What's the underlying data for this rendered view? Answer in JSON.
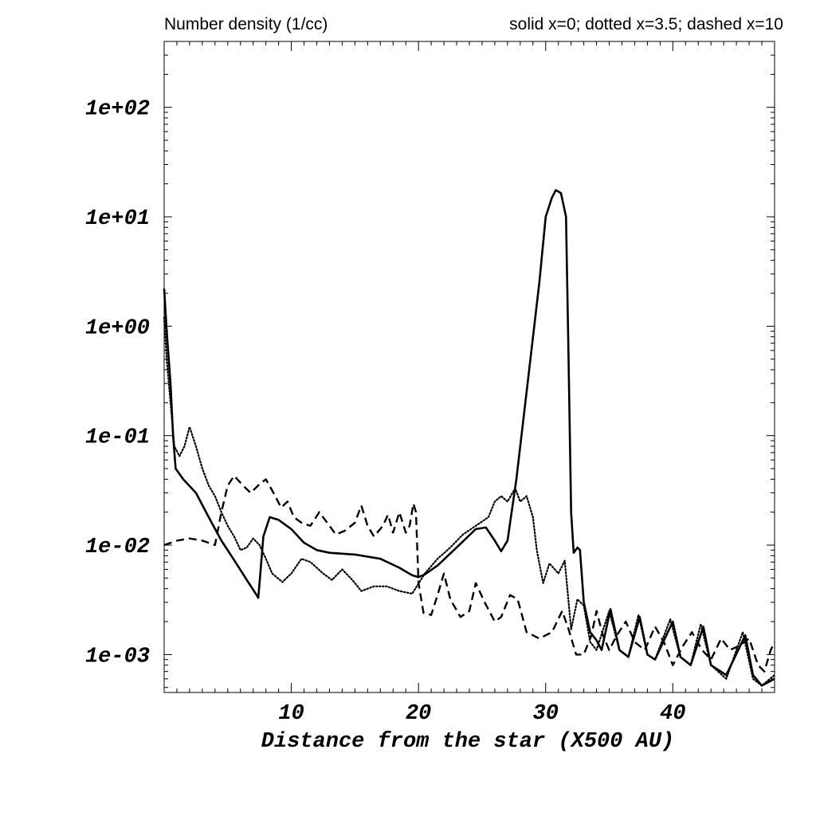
{
  "chart_data": {
    "type": "line",
    "title_left": "Number density (1/cc)",
    "title_right": "solid x=0; dotted x=3.5; dashed x=10",
    "xlabel": "Distance from the star (X500 AU)",
    "ylabel": "",
    "xlim": [
      0,
      48
    ],
    "ylim": [
      0.00045,
      400
    ],
    "yscale": "log",
    "x_ticks": [
      10,
      20,
      30,
      40
    ],
    "x_tick_labels": [
      "10",
      "20",
      "30",
      "40"
    ],
    "y_ticks": [
      0.001,
      0.01,
      0.1,
      1,
      10,
      100
    ],
    "y_tick_labels": [
      "1e-03",
      "1e-02",
      "1e-01",
      "1e+00",
      "1e+01",
      "1e+02"
    ],
    "series": [
      {
        "name": "solid x=0",
        "style": "solid",
        "color": "#000000",
        "points": [
          [
            0.0,
            2.2
          ],
          [
            0.2,
            0.9
          ],
          [
            0.5,
            0.3
          ],
          [
            0.7,
            0.1
          ],
          [
            0.9,
            0.05
          ],
          [
            1.5,
            0.04
          ],
          [
            2.5,
            0.03
          ],
          [
            3.5,
            0.018
          ],
          [
            4.5,
            0.011
          ],
          [
            5.5,
            0.0073
          ],
          [
            6.5,
            0.0048
          ],
          [
            7.2,
            0.0036
          ],
          [
            7.4,
            0.0033
          ],
          [
            7.5,
            0.0045
          ],
          [
            7.8,
            0.012
          ],
          [
            8.3,
            0.018
          ],
          [
            9.0,
            0.017
          ],
          [
            10.0,
            0.014
          ],
          [
            11.0,
            0.0105
          ],
          [
            12.0,
            0.009
          ],
          [
            13.0,
            0.0085
          ],
          [
            15.0,
            0.0082
          ],
          [
            17.0,
            0.0075
          ],
          [
            18.5,
            0.0062
          ],
          [
            19.5,
            0.0053
          ],
          [
            20.0,
            0.0051
          ],
          [
            20.5,
            0.0054
          ],
          [
            21.5,
            0.0065
          ],
          [
            23.0,
            0.0095
          ],
          [
            24.5,
            0.014
          ],
          [
            25.3,
            0.0145
          ],
          [
            26.0,
            0.011
          ],
          [
            26.5,
            0.0088
          ],
          [
            27.0,
            0.011
          ],
          [
            27.7,
            0.04
          ],
          [
            28.5,
            0.25
          ],
          [
            29.5,
            2.5
          ],
          [
            30.0,
            10.0
          ],
          [
            30.5,
            15.0
          ],
          [
            30.8,
            17.5
          ],
          [
            31.2,
            16.5
          ],
          [
            31.6,
            10.0
          ],
          [
            31.8,
            0.5
          ],
          [
            32.0,
            0.02
          ],
          [
            32.2,
            0.0085
          ],
          [
            32.5,
            0.0095
          ],
          [
            32.7,
            0.009
          ],
          [
            33.0,
            0.003
          ],
          [
            33.5,
            0.0016
          ],
          [
            34.0,
            0.00135
          ],
          [
            34.4,
            0.0011
          ],
          [
            35.1,
            0.0026
          ],
          [
            35.8,
            0.0011
          ],
          [
            36.5,
            0.00095
          ],
          [
            37.4,
            0.0022
          ],
          [
            38.0,
            0.001
          ],
          [
            38.6,
            0.0009
          ],
          [
            40.0,
            0.002
          ],
          [
            40.6,
            0.00095
          ],
          [
            41.4,
            0.0008
          ],
          [
            42.4,
            0.0018
          ],
          [
            43.0,
            0.0008
          ],
          [
            44.2,
            0.00065
          ],
          [
            45.7,
            0.0015
          ],
          [
            46.3,
            0.00065
          ],
          [
            47.0,
            0.00052
          ],
          [
            48.0,
            0.0006
          ]
        ]
      },
      {
        "name": "dotted x=3.5",
        "style": "dotted",
        "color": "#000000",
        "points": [
          [
            0.0,
            1.2
          ],
          [
            0.2,
            0.5
          ],
          [
            0.5,
            0.2
          ],
          [
            0.8,
            0.08
          ],
          [
            1.2,
            0.065
          ],
          [
            1.6,
            0.08
          ],
          [
            2.0,
            0.12
          ],
          [
            2.5,
            0.08
          ],
          [
            3.0,
            0.05
          ],
          [
            3.5,
            0.035
          ],
          [
            4.0,
            0.028
          ],
          [
            4.5,
            0.02
          ],
          [
            5.0,
            0.015
          ],
          [
            5.5,
            0.012
          ],
          [
            6.0,
            0.009
          ],
          [
            6.5,
            0.0095
          ],
          [
            7.0,
            0.0115
          ],
          [
            7.5,
            0.01
          ],
          [
            8.0,
            0.0075
          ],
          [
            8.5,
            0.0055
          ],
          [
            9.3,
            0.0046
          ],
          [
            10.0,
            0.0055
          ],
          [
            10.8,
            0.0075
          ],
          [
            11.5,
            0.007
          ],
          [
            12.5,
            0.0055
          ],
          [
            13.2,
            0.0048
          ],
          [
            14.0,
            0.006
          ],
          [
            14.8,
            0.0048
          ],
          [
            15.5,
            0.0038
          ],
          [
            16.5,
            0.0042
          ],
          [
            17.5,
            0.0042
          ],
          [
            18.5,
            0.0038
          ],
          [
            19.5,
            0.0036
          ],
          [
            20.5,
            0.0055
          ],
          [
            21.5,
            0.0075
          ],
          [
            22.5,
            0.0095
          ],
          [
            23.5,
            0.0125
          ],
          [
            24.5,
            0.015
          ],
          [
            25.5,
            0.018
          ],
          [
            26.0,
            0.025
          ],
          [
            26.5,
            0.028
          ],
          [
            27.0,
            0.025
          ],
          [
            27.6,
            0.033
          ],
          [
            28.0,
            0.025
          ],
          [
            28.5,
            0.028
          ],
          [
            29.0,
            0.018
          ],
          [
            29.3,
            0.009
          ],
          [
            29.8,
            0.0045
          ],
          [
            30.3,
            0.0068
          ],
          [
            31.0,
            0.0055
          ],
          [
            31.5,
            0.0072
          ],
          [
            32.0,
            0.0017
          ],
          [
            32.5,
            0.0032
          ],
          [
            33.0,
            0.0028
          ],
          [
            33.5,
            0.0013
          ],
          [
            34.0,
            0.0011
          ],
          [
            35.0,
            0.0025
          ],
          [
            35.8,
            0.0011
          ],
          [
            36.5,
            0.00095
          ],
          [
            37.3,
            0.0023
          ],
          [
            38.0,
            0.001
          ],
          [
            38.6,
            0.0009
          ],
          [
            39.8,
            0.0021
          ],
          [
            40.6,
            0.00095
          ],
          [
            41.4,
            0.0008
          ],
          [
            42.2,
            0.0019
          ],
          [
            43.0,
            0.0008
          ],
          [
            44.2,
            0.0006
          ],
          [
            45.5,
            0.0016
          ],
          [
            46.3,
            0.0006
          ],
          [
            47.0,
            0.00052
          ],
          [
            48.0,
            0.00065
          ]
        ]
      },
      {
        "name": "dashed x=10",
        "style": "dashed",
        "color": "#000000",
        "points": [
          [
            0.0,
            0.01
          ],
          [
            1.0,
            0.011
          ],
          [
            2.0,
            0.0115
          ],
          [
            3.0,
            0.011
          ],
          [
            4.0,
            0.01
          ],
          [
            4.5,
            0.02
          ],
          [
            5.0,
            0.035
          ],
          [
            5.5,
            0.043
          ],
          [
            6.2,
            0.035
          ],
          [
            6.8,
            0.03
          ],
          [
            7.5,
            0.036
          ],
          [
            8.0,
            0.04
          ],
          [
            8.6,
            0.03
          ],
          [
            9.2,
            0.022
          ],
          [
            9.7,
            0.025
          ],
          [
            10.2,
            0.018
          ],
          [
            10.8,
            0.016
          ],
          [
            11.5,
            0.015
          ],
          [
            12.2,
            0.02
          ],
          [
            13.0,
            0.015
          ],
          [
            13.5,
            0.0125
          ],
          [
            14.2,
            0.0135
          ],
          [
            15.0,
            0.016
          ],
          [
            15.5,
            0.023
          ],
          [
            16.0,
            0.015
          ],
          [
            16.5,
            0.012
          ],
          [
            17.2,
            0.015
          ],
          [
            17.6,
            0.019
          ],
          [
            18.0,
            0.013
          ],
          [
            18.5,
            0.02
          ],
          [
            19.0,
            0.013
          ],
          [
            19.3,
            0.015
          ],
          [
            19.6,
            0.024
          ],
          [
            19.8,
            0.02
          ],
          [
            20.0,
            0.0045
          ],
          [
            20.4,
            0.0024
          ],
          [
            21.0,
            0.0023
          ],
          [
            21.5,
            0.0035
          ],
          [
            22.0,
            0.0055
          ],
          [
            22.5,
            0.0032
          ],
          [
            23.3,
            0.0022
          ],
          [
            24.0,
            0.0025
          ],
          [
            24.5,
            0.0045
          ],
          [
            25.2,
            0.003
          ],
          [
            26.0,
            0.002
          ],
          [
            26.5,
            0.0022
          ],
          [
            27.2,
            0.0035
          ],
          [
            27.8,
            0.0032
          ],
          [
            28.5,
            0.0016
          ],
          [
            29.5,
            0.0014
          ],
          [
            30.5,
            0.0016
          ],
          [
            31.3,
            0.0025
          ],
          [
            31.8,
            0.0017
          ],
          [
            32.4,
            0.001
          ],
          [
            33.0,
            0.001
          ],
          [
            33.6,
            0.0015
          ],
          [
            34.0,
            0.0025
          ],
          [
            34.5,
            0.0015
          ],
          [
            35.0,
            0.0011
          ],
          [
            35.6,
            0.0015
          ],
          [
            36.3,
            0.002
          ],
          [
            37.0,
            0.0013
          ],
          [
            37.8,
            0.0011
          ],
          [
            38.6,
            0.0018
          ],
          [
            39.3,
            0.0013
          ],
          [
            40.0,
            0.0008
          ],
          [
            40.8,
            0.0012
          ],
          [
            41.5,
            0.0016
          ],
          [
            42.3,
            0.0011
          ],
          [
            43.0,
            0.0009
          ],
          [
            43.8,
            0.0014
          ],
          [
            44.5,
            0.0011
          ],
          [
            45.2,
            0.0012
          ],
          [
            46.0,
            0.0014
          ],
          [
            46.7,
            0.0008
          ],
          [
            47.2,
            0.0007
          ],
          [
            47.7,
            0.0011
          ],
          [
            48.0,
            0.0013
          ]
        ]
      }
    ],
    "grid": false,
    "legend": "none"
  }
}
